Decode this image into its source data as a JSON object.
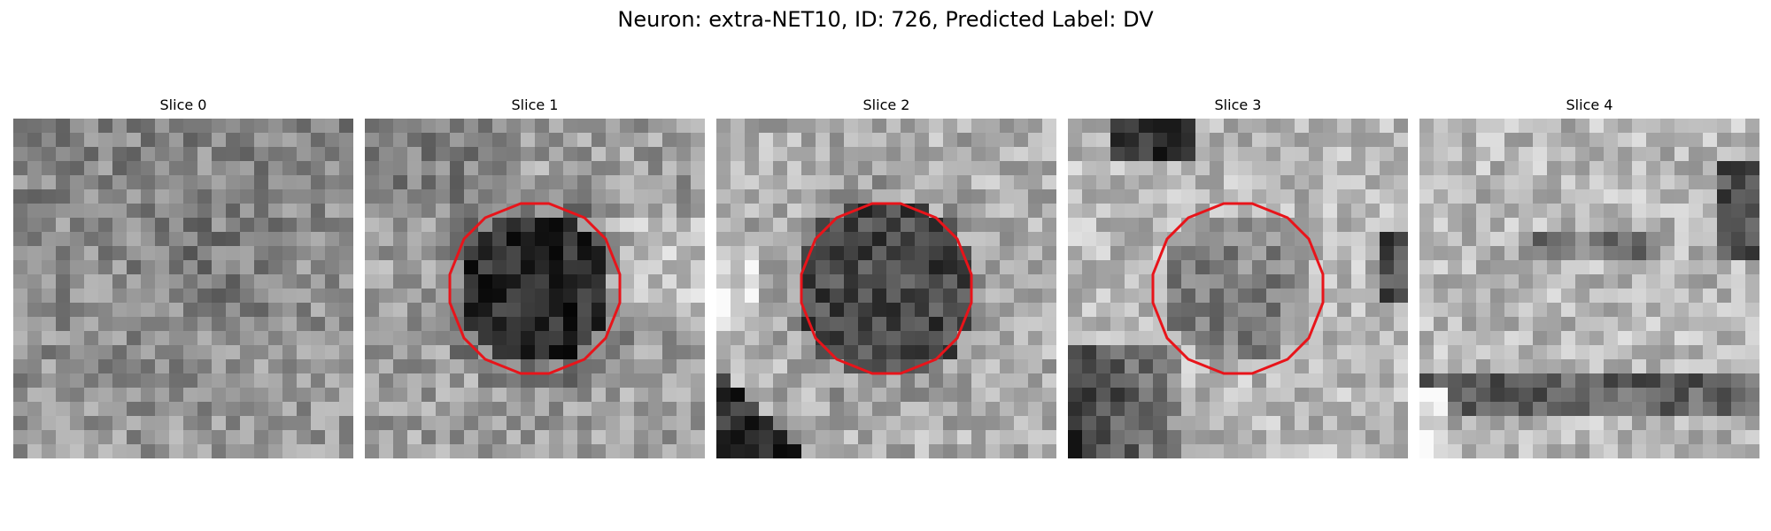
{
  "figure": {
    "title": "Neuron: extra-NET10, ID: 726, Predicted Label: DV"
  },
  "outline_color": "#e8141a",
  "panels": [
    {
      "title": "Slice 0",
      "seed": 11,
      "pattern": "flat",
      "roi": false
    },
    {
      "title": "Slice 1",
      "seed": 23,
      "pattern": "dark-core",
      "roi": true
    },
    {
      "title": "Slice 2",
      "seed": 37,
      "pattern": "dark-core-ring",
      "roi": true
    },
    {
      "title": "Slice 3",
      "seed": 53,
      "pattern": "mid-core-bright-ring",
      "roi": true
    },
    {
      "title": "Slice 4",
      "seed": 71,
      "pattern": "bright-band",
      "roi": false
    }
  ]
}
